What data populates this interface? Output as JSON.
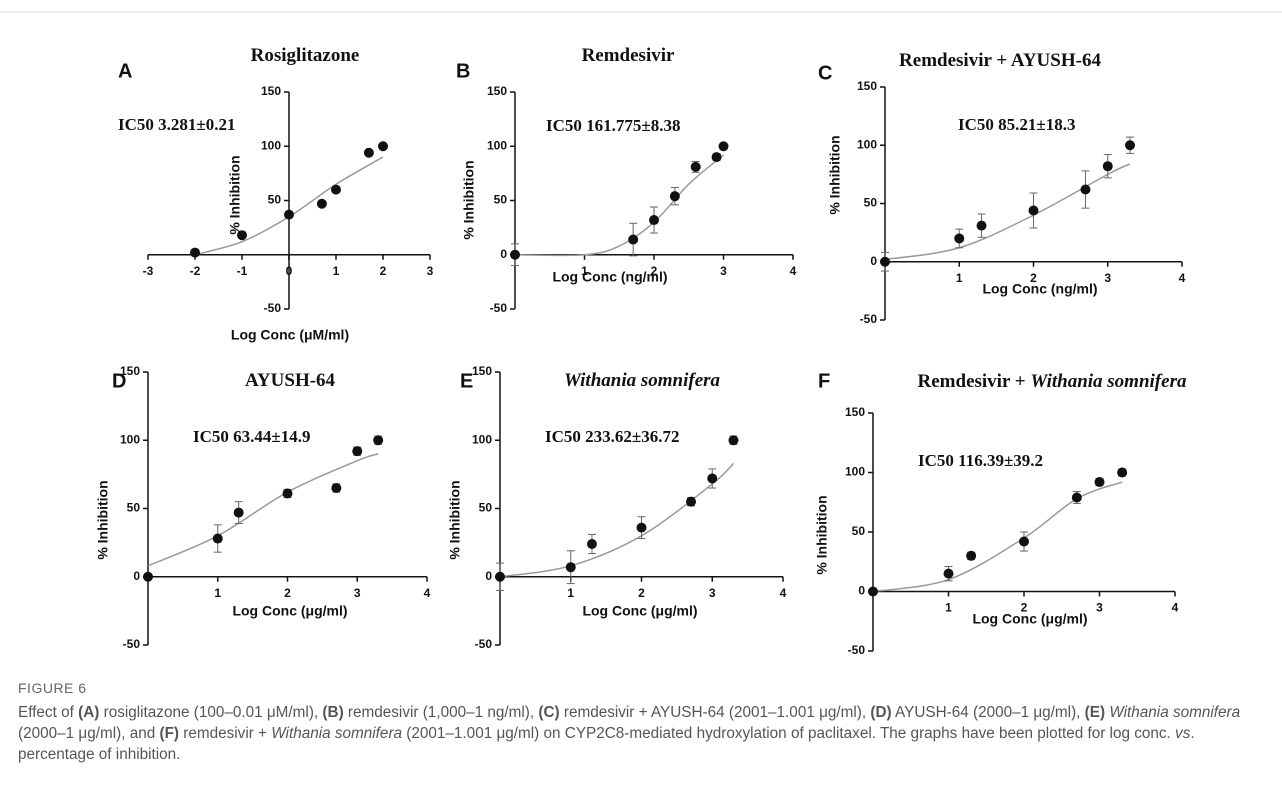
{
  "chart_data": [
    {
      "type": "scatter",
      "panel": "A",
      "title": [
        {
          "text": "Rosiglitazone"
        }
      ],
      "annotation": "IC50 3.281±0.21",
      "x_label": "Log Conc (μM/ml)",
      "y_label": "% Inhibition",
      "xlim": [
        -3,
        3
      ],
      "ylim": [
        -50,
        150
      ],
      "xticks": [
        -3,
        -2,
        -1,
        0,
        1,
        2,
        3
      ],
      "yticks": [
        -50,
        50,
        100,
        150
      ],
      "series": [
        {
          "color": "#111111",
          "x": [
            -2,
            -1,
            0,
            0.7,
            1,
            1.7,
            2
          ],
          "values": [
            2,
            18,
            37,
            47,
            60,
            94,
            100
          ]
        }
      ],
      "fit": {
        "color": "#999999",
        "x": [
          -2,
          -1,
          0,
          1,
          2
        ],
        "values": [
          0,
          12,
          35,
          65,
          90
        ]
      }
    },
    {
      "type": "scatter",
      "panel": "B",
      "title": [
        {
          "text": "Remdesivir"
        }
      ],
      "annotation": "IC50 161.775±8.38",
      "x_label": "Log Conc (ng/ml)",
      "y_label": "% Inhibition",
      "xlim": [
        0,
        4
      ],
      "ylim": [
        -50,
        150
      ],
      "xticks": [
        1,
        2,
        3,
        4
      ],
      "yticks": [
        -50,
        0,
        50,
        100,
        150
      ],
      "series": [
        {
          "color": "#111111",
          "x": [
            0,
            1.7,
            2,
            2.3,
            2.6,
            2.9,
            3
          ],
          "values": [
            0,
            14,
            32,
            54,
            81,
            90,
            100
          ],
          "errors": [
            10,
            15,
            12,
            8,
            5,
            3,
            2
          ]
        }
      ],
      "fit": {
        "color": "#999999",
        "x": [
          0,
          1,
          1.5,
          2,
          2.5,
          3
        ],
        "values": [
          0,
          0,
          8,
          30,
          65,
          92
        ]
      }
    },
    {
      "type": "scatter",
      "panel": "C",
      "title": [
        {
          "text": "Remdesivir + AYUSH-64"
        }
      ],
      "annotation": "IC50 85.21±18.3",
      "x_label": "Log Conc (ng/ml)",
      "y_label": "% Inhibition",
      "xlim": [
        0,
        4
      ],
      "ylim": [
        -50,
        150
      ],
      "xticks": [
        1,
        2,
        3,
        4
      ],
      "yticks": [
        -50,
        0,
        50,
        100,
        150
      ],
      "series": [
        {
          "color": "#111111",
          "x": [
            0,
            1,
            1.3,
            2,
            2.7,
            3,
            3.3
          ],
          "values": [
            0,
            20,
            31,
            44,
            62,
            82,
            100
          ],
          "errors": [
            8,
            8,
            10,
            15,
            16,
            10,
            7
          ]
        }
      ],
      "fit": {
        "color": "#999999",
        "x": [
          0,
          1,
          2,
          3,
          3.3
        ],
        "values": [
          2,
          12,
          40,
          75,
          84
        ]
      }
    },
    {
      "type": "scatter",
      "panel": "D",
      "title": [
        {
          "text": "AYUSH-64"
        }
      ],
      "annotation": "IC50 63.44±14.9",
      "x_label": "Log Conc (μg/ml)",
      "y_label": "% Inhibition",
      "xlim": [
        0,
        4
      ],
      "ylim": [
        -50,
        150
      ],
      "xticks": [
        1,
        2,
        3,
        4
      ],
      "yticks": [
        -50,
        0,
        50,
        100,
        150
      ],
      "series": [
        {
          "color": "#111111",
          "x": [
            0,
            1,
            1.3,
            2,
            2.7,
            3,
            3.3
          ],
          "values": [
            0,
            28,
            47,
            61,
            65,
            92,
            100
          ],
          "errors": [
            0,
            10,
            8,
            3,
            3,
            3,
            3
          ]
        }
      ],
      "fit": {
        "color": "#999999",
        "x": [
          0,
          1,
          2,
          3,
          3.3
        ],
        "values": [
          8,
          30,
          62,
          85,
          90
        ]
      }
    },
    {
      "type": "scatter",
      "panel": "E",
      "title": [
        {
          "text": "Withania somnifera",
          "italic": true
        }
      ],
      "annotation": "IC50 233.62±36.72",
      "x_label": "Log Conc (μg/ml)",
      "y_label": "% Inhibition",
      "xlim": [
        0,
        4
      ],
      "ylim": [
        -50,
        150
      ],
      "xticks": [
        1,
        2,
        3,
        4
      ],
      "yticks": [
        -50,
        0,
        50,
        100,
        150
      ],
      "series": [
        {
          "color": "#111111",
          "x": [
            0,
            1,
            1.3,
            2,
            2.7,
            3,
            3.3
          ],
          "values": [
            0,
            7,
            24,
            36,
            55,
            72,
            100
          ],
          "errors": [
            10,
            12,
            7,
            8,
            3,
            7,
            3
          ]
        }
      ],
      "fit": {
        "color": "#999999",
        "x": [
          0,
          1,
          2,
          3,
          3.3
        ],
        "values": [
          0,
          8,
          30,
          68,
          83
        ]
      }
    },
    {
      "type": "scatter",
      "panel": "F",
      "title": [
        {
          "text": "Remdesivir + "
        },
        {
          "text": "Withania somnifera",
          "italic": true
        }
      ],
      "annotation": "IC50 116.39±39.2",
      "x_label": "Log Conc (μg/ml)",
      "y_label": "% Inhibition",
      "xlim": [
        0,
        4
      ],
      "ylim": [
        -50,
        150
      ],
      "xticks": [
        1,
        2,
        3,
        4
      ],
      "yticks": [
        -50,
        0,
        50,
        100,
        150
      ],
      "series": [
        {
          "color": "#111111",
          "x": [
            0,
            1,
            1.3,
            2,
            2.7,
            3,
            3.3
          ],
          "values": [
            0,
            15,
            30,
            42,
            79,
            92,
            100
          ],
          "errors": [
            0,
            6,
            3,
            8,
            5,
            3,
            3
          ]
        }
      ],
      "fit": {
        "color": "#999999",
        "x": [
          0,
          1,
          2,
          2.7,
          3.3
        ],
        "values": [
          0,
          10,
          45,
          78,
          92
        ]
      }
    }
  ],
  "figure": {
    "label": "FIGURE 6",
    "caption": [
      {
        "text": "Effect of "
      },
      {
        "text": "(A)",
        "bold": true
      },
      {
        "text": " rosiglitazone (100–0.01 μM/ml), "
      },
      {
        "text": "(B)",
        "bold": true
      },
      {
        "text": " remdesivir (1,000–1 ng/ml), "
      },
      {
        "text": "(C)",
        "bold": true
      },
      {
        "text": " remdesivir + AYUSH-64 (2001–1.001 μg/ml), "
      },
      {
        "text": "(D)",
        "bold": true
      },
      {
        "text": " AYUSH-64 (2000–1 μg/ml), "
      },
      {
        "text": "(E)",
        "bold": true
      },
      {
        "text": " "
      },
      {
        "text": "Withania somnifera",
        "italic": true
      },
      {
        "text": " (2000–1 μg/ml), and "
      },
      {
        "text": "(F)",
        "bold": true
      },
      {
        "text": " remdesivir + "
      },
      {
        "text": "Withania somnifera",
        "italic": true
      },
      {
        "text": " (2001–1.001 μg/ml) on CYP2C8-mediated hydroxylation of paclitaxel. The graphs have been plotted for log conc. "
      },
      {
        "text": "vs",
        "italic": true
      },
      {
        "text": ". percentage of inhibition."
      }
    ]
  }
}
